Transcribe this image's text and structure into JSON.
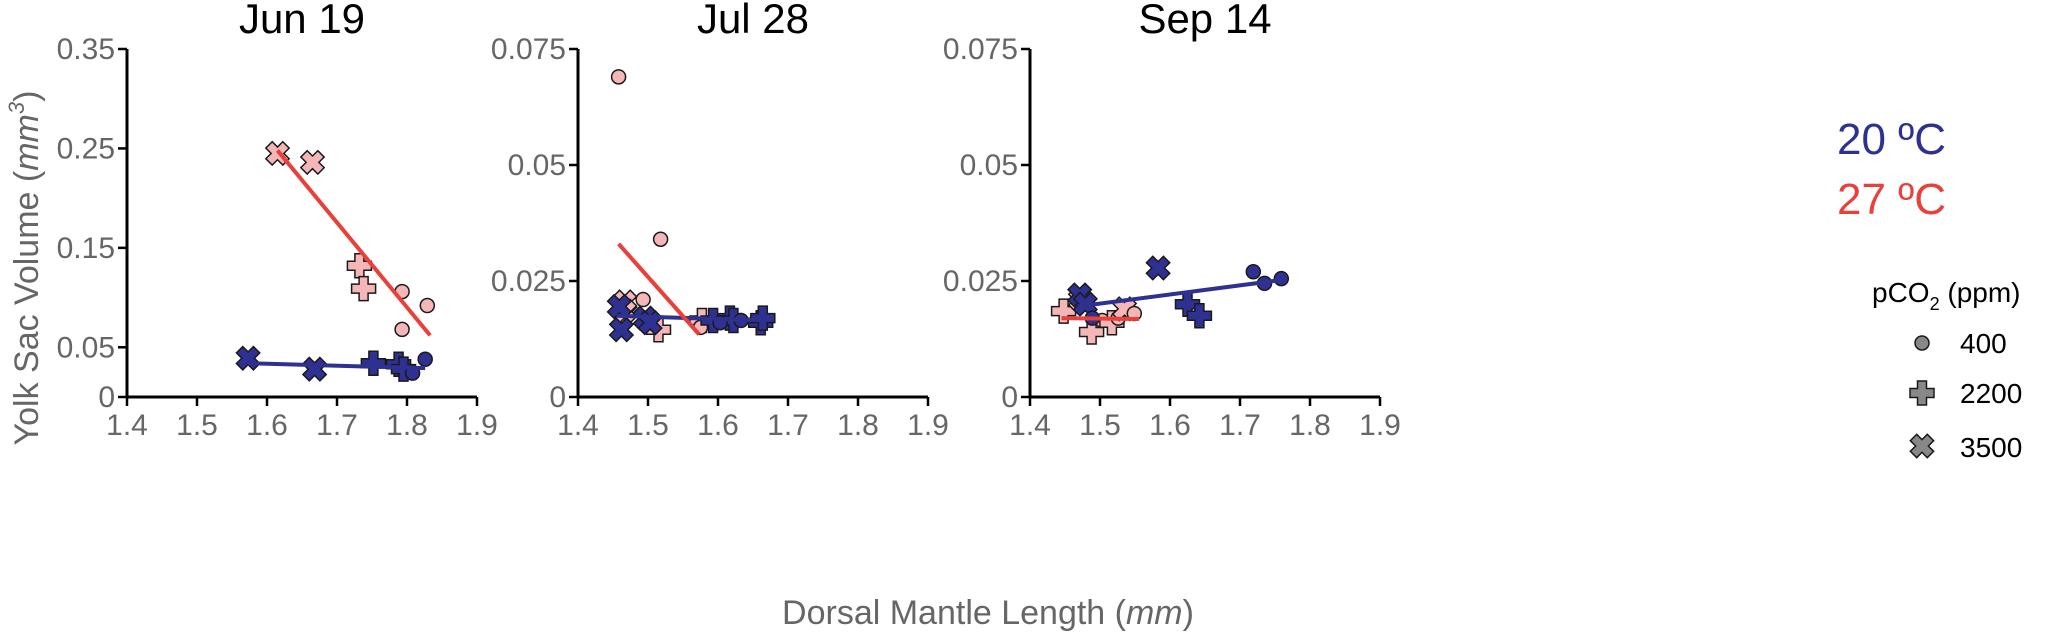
{
  "chart_data": {
    "type": "scatter",
    "ylabel_text": "Yolk Sac Volume (",
    "ylabel_unit": "mm",
    "ylabel_sup": "3",
    "ylabel_close": ")",
    "xlabel_text": "Dorsal Mantle Length (",
    "xlabel_unit": "mm",
    "xlabel_close": ")",
    "xlim": [
      1.4,
      1.9
    ],
    "xticks": [
      "1.4",
      "1.5",
      "1.6",
      "1.7",
      "1.8",
      "1.9"
    ],
    "temperature_legend": [
      {
        "label": "20 ºC",
        "color": "#2e3192"
      },
      {
        "label": "27 ºC",
        "color": "#e8413c"
      }
    ],
    "marker_legend": {
      "title_main": "pCO",
      "title_sub": "2",
      "title_unit": " (ppm)",
      "items": [
        {
          "label": "400",
          "marker": "circle"
        },
        {
          "label": "2200",
          "marker": "plus"
        },
        {
          "label": "3500",
          "marker": "x"
        }
      ]
    },
    "colors": {
      "cold": "#2e3192",
      "warm_line": "#e8413c",
      "warm_marker": "#f4b6b6",
      "legend_marker": "#888888",
      "axis": "#000000"
    },
    "panels": [
      {
        "title": "Jun 19",
        "ylim": [
          0,
          0.35
        ],
        "yticks": [
          "0",
          "0.05",
          "0.15",
          "0.25",
          "0.35"
        ],
        "points": [
          {
            "x": 1.573,
            "y": 0.039,
            "temp": "20",
            "pco2": "3500"
          },
          {
            "x": 1.668,
            "y": 0.028,
            "temp": "20",
            "pco2": "3500"
          },
          {
            "x": 1.752,
            "y": 0.034,
            "temp": "20",
            "pco2": "2200"
          },
          {
            "x": 1.788,
            "y": 0.033,
            "temp": "20",
            "pco2": "2200"
          },
          {
            "x": 1.795,
            "y": 0.028,
            "temp": "20",
            "pco2": "2200"
          },
          {
            "x": 1.808,
            "y": 0.024,
            "temp": "20",
            "pco2": "400"
          },
          {
            "x": 1.826,
            "y": 0.038,
            "temp": "20",
            "pco2": "400"
          },
          {
            "x": 1.615,
            "y": 0.245,
            "temp": "27",
            "pco2": "3500"
          },
          {
            "x": 1.665,
            "y": 0.236,
            "temp": "27",
            "pco2": "3500"
          },
          {
            "x": 1.732,
            "y": 0.132,
            "temp": "27",
            "pco2": "2200"
          },
          {
            "x": 1.738,
            "y": 0.109,
            "temp": "27",
            "pco2": "2200"
          },
          {
            "x": 1.793,
            "y": 0.106,
            "temp": "27",
            "pco2": "400"
          },
          {
            "x": 1.793,
            "y": 0.068,
            "temp": "27",
            "pco2": "400"
          },
          {
            "x": 1.829,
            "y": 0.092,
            "temp": "27",
            "pco2": "400"
          }
        ],
        "fits": [
          {
            "temp": "20",
            "x": [
              1.573,
              1.826
            ],
            "y": [
              0.034,
              0.029
            ]
          },
          {
            "temp": "27",
            "x": [
              1.615,
              1.833
            ],
            "y": [
              0.248,
              0.062
            ]
          }
        ]
      },
      {
        "title": "Jul 28",
        "ylim": [
          0,
          0.075
        ],
        "yticks": [
          "0",
          "0.025",
          "0.05",
          "0.075"
        ],
        "points": [
          {
            "x": 1.459,
            "y": 0.0195,
            "temp": "20",
            "pco2": "3500"
          },
          {
            "x": 1.462,
            "y": 0.0145,
            "temp": "20",
            "pco2": "3500"
          },
          {
            "x": 1.496,
            "y": 0.017,
            "temp": "20",
            "pco2": "3500"
          },
          {
            "x": 1.503,
            "y": 0.016,
            "temp": "20",
            "pco2": "3500"
          },
          {
            "x": 1.593,
            "y": 0.0165,
            "temp": "20",
            "pco2": "2200"
          },
          {
            "x": 1.617,
            "y": 0.017,
            "temp": "20",
            "pco2": "2200"
          },
          {
            "x": 1.622,
            "y": 0.0165,
            "temp": "20",
            "pco2": "2200"
          },
          {
            "x": 1.661,
            "y": 0.016,
            "temp": "20",
            "pco2": "2200"
          },
          {
            "x": 1.664,
            "y": 0.017,
            "temp": "20",
            "pco2": "2200"
          },
          {
            "x": 1.603,
            "y": 0.016,
            "temp": "20",
            "pco2": "400"
          },
          {
            "x": 1.633,
            "y": 0.0165,
            "temp": "20",
            "pco2": "400"
          },
          {
            "x": 1.458,
            "y": 0.069,
            "temp": "27",
            "pco2": "400"
          },
          {
            "x": 1.518,
            "y": 0.034,
            "temp": "27",
            "pco2": "400"
          },
          {
            "x": 1.493,
            "y": 0.021,
            "temp": "27",
            "pco2": "400"
          },
          {
            "x": 1.467,
            "y": 0.0205,
            "temp": "27",
            "pco2": "3500"
          },
          {
            "x": 1.467,
            "y": 0.0185,
            "temp": "27",
            "pco2": "3500"
          },
          {
            "x": 1.515,
            "y": 0.0145,
            "temp": "27",
            "pco2": "2200"
          },
          {
            "x": 1.577,
            "y": 0.0165,
            "temp": "27",
            "pco2": "2200"
          },
          {
            "x": 1.575,
            "y": 0.015,
            "temp": "27",
            "pco2": "400"
          }
        ],
        "fits": [
          {
            "temp": "20",
            "x": [
              1.455,
              1.665
            ],
            "y": [
              0.0175,
              0.0165
            ]
          },
          {
            "temp": "27",
            "x": [
              1.458,
              1.573
            ],
            "y": [
              0.033,
              0.0135
            ]
          }
        ]
      },
      {
        "title": "Sep 14",
        "ylim": [
          0,
          0.075
        ],
        "yticks": [
          "0",
          "0.025",
          "0.05",
          "0.075"
        ],
        "points": [
          {
            "x": 1.471,
            "y": 0.022,
            "temp": "20",
            "pco2": "3500"
          },
          {
            "x": 1.479,
            "y": 0.02,
            "temp": "20",
            "pco2": "3500"
          },
          {
            "x": 1.583,
            "y": 0.0278,
            "temp": "20",
            "pco2": "3500"
          },
          {
            "x": 1.489,
            "y": 0.017,
            "temp": "20",
            "pco2": "400"
          },
          {
            "x": 1.625,
            "y": 0.02,
            "temp": "20",
            "pco2": "2200"
          },
          {
            "x": 1.642,
            "y": 0.0175,
            "temp": "20",
            "pco2": "2200"
          },
          {
            "x": 1.719,
            "y": 0.027,
            "temp": "20",
            "pco2": "400"
          },
          {
            "x": 1.735,
            "y": 0.0245,
            "temp": "20",
            "pco2": "400"
          },
          {
            "x": 1.759,
            "y": 0.0255,
            "temp": "20",
            "pco2": "400"
          },
          {
            "x": 1.448,
            "y": 0.0185,
            "temp": "27",
            "pco2": "2200"
          },
          {
            "x": 1.472,
            "y": 0.021,
            "temp": "27",
            "pco2": "3500"
          },
          {
            "x": 1.488,
            "y": 0.014,
            "temp": "27",
            "pco2": "2200"
          },
          {
            "x": 1.503,
            "y": 0.0165,
            "temp": "27",
            "pco2": "400"
          },
          {
            "x": 1.517,
            "y": 0.016,
            "temp": "27",
            "pco2": "2200"
          },
          {
            "x": 1.526,
            "y": 0.017,
            "temp": "27",
            "pco2": "400"
          },
          {
            "x": 1.535,
            "y": 0.019,
            "temp": "27",
            "pco2": "3500"
          },
          {
            "x": 1.549,
            "y": 0.018,
            "temp": "27",
            "pco2": "400"
          }
        ],
        "fits": [
          {
            "temp": "20",
            "x": [
              1.468,
              1.758
            ],
            "y": [
              0.0195,
              0.0252
            ]
          },
          {
            "temp": "27",
            "x": [
              1.445,
              1.556
            ],
            "y": [
              0.017,
              0.0168
            ]
          }
        ]
      }
    ]
  }
}
